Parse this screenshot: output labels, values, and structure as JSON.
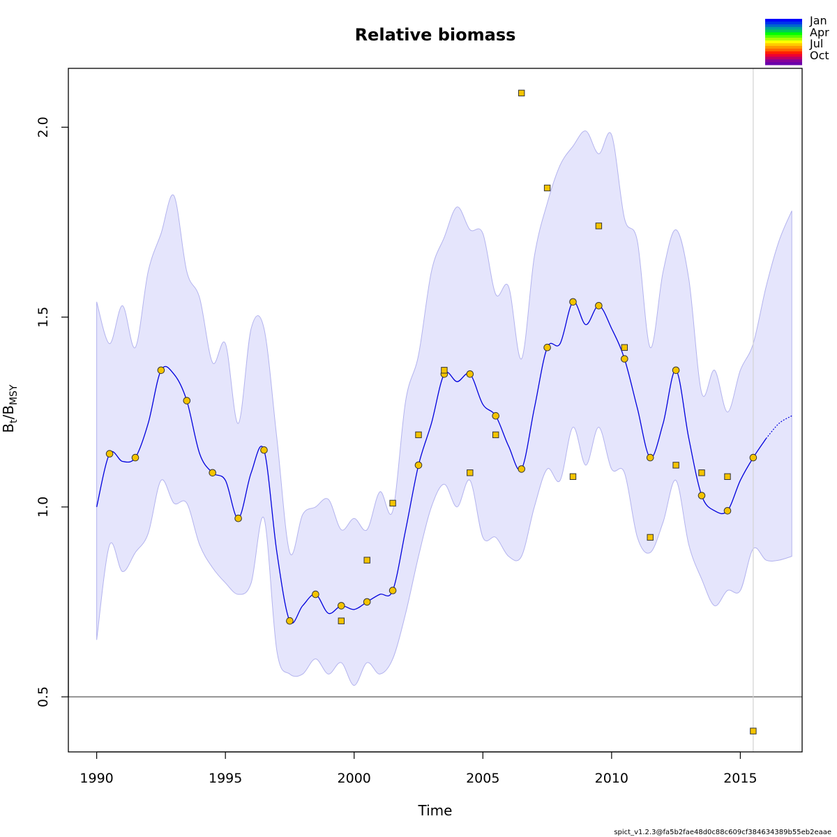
{
  "chart_data": {
    "type": "line",
    "title": "Relative biomass",
    "xlabel": "Time",
    "ylabel_main": "B",
    "ylabel_sub1": "t",
    "ylabel_sep": "/B",
    "ylabel_sub2": "MSY",
    "xlim": [
      1988.9,
      2017.4
    ],
    "ylim": [
      0.355,
      2.155
    ],
    "x_ticks": [
      1990,
      1995,
      2000,
      2005,
      2010,
      2015
    ],
    "y_ticks": [
      0.5,
      1.0,
      1.5,
      2.0
    ],
    "x_tick_labels": [
      "1990",
      "1995",
      "2000",
      "2005",
      "2010",
      "2015"
    ],
    "y_tick_labels": [
      "0.5",
      "1.0",
      "1.5",
      "2.0"
    ],
    "reference_line_y": 0.5,
    "last_observation_x": 2015.5,
    "colors": {
      "band": "#e5e5fc",
      "band_edge": "#b3b3ee",
      "line": "#0000dd",
      "marker": "#f5c400",
      "reference": "#666666",
      "vline": "#d3d3d3"
    },
    "series": [
      {
        "kind": "estimate",
        "x": [
          1990.0,
          1990.5,
          1991.0,
          1991.5,
          1992.0,
          1992.5,
          1993.0,
          1993.5,
          1994.0,
          1994.5,
          1995.0,
          1995.5,
          1996.0,
          1996.5,
          1997.0,
          1997.5,
          1998.0,
          1998.5,
          1999.0,
          1999.5,
          2000.0,
          2000.5,
          2001.0,
          2001.5,
          2002.0,
          2002.5,
          2003.0,
          2003.5,
          2004.0,
          2004.5,
          2005.0,
          2005.5,
          2006.0,
          2006.5,
          2007.0,
          2007.5,
          2008.0,
          2008.5,
          2009.0,
          2009.5,
          2010.0,
          2010.5,
          2011.0,
          2011.5,
          2012.0,
          2012.5,
          2013.0,
          2013.5,
          2014.0,
          2014.5,
          2015.0,
          2015.5,
          2016.0
        ],
        "values": [
          1.0,
          1.14,
          1.12,
          1.13,
          1.22,
          1.36,
          1.35,
          1.28,
          1.14,
          1.09,
          1.07,
          0.97,
          1.09,
          1.15,
          0.88,
          0.7,
          0.74,
          0.77,
          0.72,
          0.74,
          0.73,
          0.75,
          0.77,
          0.78,
          0.94,
          1.11,
          1.22,
          1.35,
          1.33,
          1.35,
          1.27,
          1.24,
          1.16,
          1.1,
          1.26,
          1.42,
          1.43,
          1.54,
          1.48,
          1.53,
          1.47,
          1.39,
          1.26,
          1.13,
          1.22,
          1.36,
          1.18,
          1.03,
          0.99,
          0.99,
          1.07,
          1.13,
          1.18
        ]
      },
      {
        "kind": "forecast",
        "x": [
          2016.0,
          2016.5,
          2017.0
        ],
        "values": [
          1.18,
          1.22,
          1.24
        ]
      },
      {
        "kind": "ci_upper",
        "x": [
          1990.0,
          1990.5,
          1991.0,
          1991.5,
          1992.0,
          1992.5,
          1993.0,
          1993.5,
          1994.0,
          1994.5,
          1995.0,
          1995.5,
          1996.0,
          1996.5,
          1997.0,
          1997.5,
          1998.0,
          1998.5,
          1999.0,
          1999.5,
          2000.0,
          2000.5,
          2001.0,
          2001.5,
          2002.0,
          2002.5,
          2003.0,
          2003.5,
          2004.0,
          2004.5,
          2005.0,
          2005.5,
          2006.0,
          2006.5,
          2007.0,
          2007.5,
          2008.0,
          2008.5,
          2009.0,
          2009.5,
          2010.0,
          2010.5,
          2011.0,
          2011.5,
          2012.0,
          2012.5,
          2013.0,
          2013.5,
          2014.0,
          2014.5,
          2015.0,
          2015.5,
          2016.0,
          2016.5,
          2017.0
        ],
        "values": [
          1.54,
          1.43,
          1.53,
          1.42,
          1.62,
          1.72,
          1.82,
          1.62,
          1.55,
          1.38,
          1.43,
          1.22,
          1.47,
          1.47,
          1.18,
          0.88,
          0.98,
          1.0,
          1.02,
          0.94,
          0.97,
          0.94,
          1.04,
          0.99,
          1.28,
          1.4,
          1.62,
          1.71,
          1.79,
          1.73,
          1.72,
          1.56,
          1.58,
          1.39,
          1.66,
          1.8,
          1.9,
          1.95,
          1.99,
          1.93,
          1.98,
          1.76,
          1.7,
          1.42,
          1.62,
          1.73,
          1.6,
          1.3,
          1.36,
          1.25,
          1.36,
          1.43,
          1.58,
          1.7,
          1.78
        ]
      },
      {
        "kind": "ci_lower",
        "x": [
          1990.0,
          1990.5,
          1991.0,
          1991.5,
          1992.0,
          1992.5,
          1993.0,
          1993.5,
          1994.0,
          1994.5,
          1995.0,
          1995.5,
          1996.0,
          1996.5,
          1997.0,
          1997.5,
          1998.0,
          1998.5,
          1999.0,
          1999.5,
          2000.0,
          2000.5,
          2001.0,
          2001.5,
          2002.0,
          2002.5,
          2003.0,
          2003.5,
          2004.0,
          2004.5,
          2005.0,
          2005.5,
          2006.0,
          2006.5,
          2007.0,
          2007.5,
          2008.0,
          2008.5,
          2009.0,
          2009.5,
          2010.0,
          2010.5,
          2011.0,
          2011.5,
          2012.0,
          2012.5,
          2013.0,
          2013.5,
          2014.0,
          2014.5,
          2015.0,
          2015.5,
          2016.0,
          2016.5,
          2017.0
        ],
        "values": [
          0.65,
          0.9,
          0.83,
          0.88,
          0.93,
          1.07,
          1.01,
          1.01,
          0.9,
          0.84,
          0.8,
          0.77,
          0.8,
          0.97,
          0.62,
          0.56,
          0.56,
          0.6,
          0.56,
          0.59,
          0.53,
          0.59,
          0.56,
          0.6,
          0.72,
          0.87,
          1.0,
          1.06,
          1.0,
          1.07,
          0.92,
          0.92,
          0.87,
          0.87,
          1.0,
          1.1,
          1.07,
          1.21,
          1.11,
          1.21,
          1.1,
          1.09,
          0.92,
          0.88,
          0.96,
          1.07,
          0.9,
          0.81,
          0.74,
          0.78,
          0.78,
          0.89,
          0.86,
          0.86,
          0.87
        ]
      },
      {
        "kind": "observations",
        "x": [
          1999.5,
          2000.5,
          2001.5,
          2002.5,
          2003.5,
          2004.5,
          2005.5,
          2006.5,
          2007.5,
          2008.5,
          2009.5,
          2010.5,
          2011.5,
          2012.5,
          2013.5,
          2014.5,
          2015.5
        ],
        "values": [
          0.7,
          0.86,
          1.01,
          1.19,
          1.36,
          1.09,
          1.19,
          2.09,
          1.84,
          1.08,
          1.74,
          1.42,
          0.92,
          1.11,
          1.09,
          1.08,
          0.41
        ]
      }
    ],
    "legend": {
      "placement": "top-right",
      "labels": [
        "Jan",
        "Apr",
        "Jul",
        "Oct"
      ],
      "colors": [
        "#0000ff",
        "#0030ee",
        "#0066cc",
        "#009f99",
        "#00cc55",
        "#00ff00",
        "#55ff00",
        "#aaff00",
        "#ffff00",
        "#ffcc00",
        "#ff9900",
        "#ff6600",
        "#ff2200",
        "#ee0033",
        "#bb0066",
        "#880099",
        "#6a00aa"
      ]
    }
  },
  "footer": {
    "version_text": "spict_v1.2.3@fa5b2fae48d0c88c609cf384634389b55eb2eaae"
  }
}
